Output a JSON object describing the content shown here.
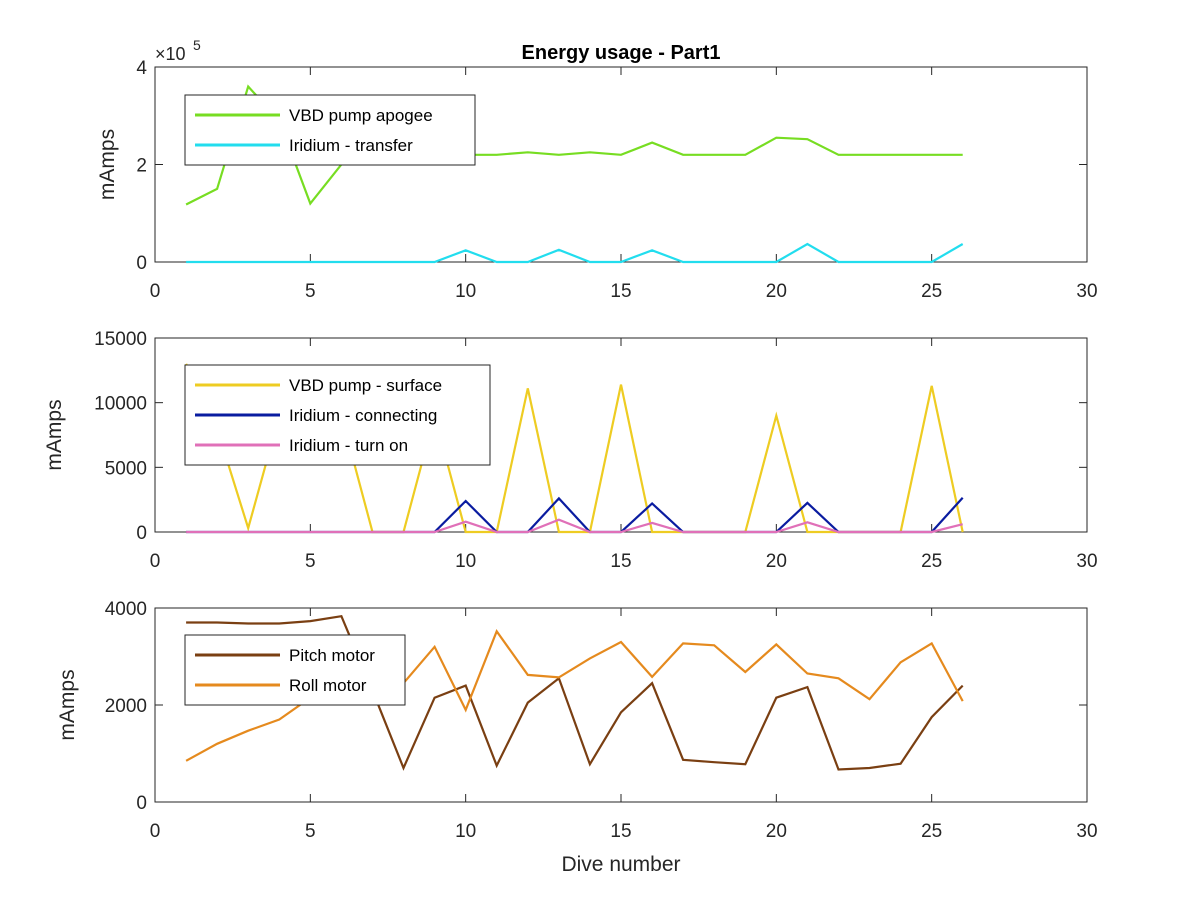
{
  "chart_data": [
    {
      "type": "line",
      "title": "Energy usage - Part1",
      "xlabel": "",
      "ylabel": "mAmps",
      "xlim": [
        0,
        30
      ],
      "ylim": [
        0,
        400000
      ],
      "y_exponent_base": "×10",
      "y_exponent_power": "5",
      "xticks": [
        0,
        5,
        10,
        15,
        20,
        25,
        30
      ],
      "xtick_labels": [
        "0",
        "5",
        "10",
        "15",
        "20",
        "25",
        "30"
      ],
      "yticks": [
        0,
        200000,
        400000
      ],
      "ytick_labels": [
        "0",
        "2",
        "4"
      ],
      "grid": false,
      "legend_position": "top-left",
      "x": [
        1,
        2,
        3,
        4,
        5,
        6,
        7,
        8,
        9,
        10,
        11,
        12,
        13,
        14,
        15,
        16,
        17,
        18,
        19,
        20,
        21,
        22,
        23,
        24,
        25,
        26
      ],
      "series": [
        {
          "name": "VBD pump apogee",
          "color": "#77dd22",
          "values": [
            118000,
            150000,
            360000,
            290000,
            120000,
            200000,
            230000,
            230000,
            225000,
            220000,
            220000,
            225000,
            220000,
            225000,
            220000,
            245000,
            220000,
            220000,
            220000,
            255000,
            252000,
            220000,
            220000,
            220000,
            220000,
            220000
          ]
        },
        {
          "name": "Iridium - transfer",
          "color": "#22ddee",
          "values": [
            0,
            0,
            0,
            0,
            0,
            0,
            0,
            0,
            0,
            24000,
            0,
            0,
            25000,
            0,
            0,
            24000,
            0,
            0,
            0,
            0,
            37000,
            0,
            0,
            0,
            0,
            37000
          ]
        }
      ]
    },
    {
      "type": "line",
      "title": "",
      "xlabel": "",
      "ylabel": "mAmps",
      "xlim": [
        0,
        30
      ],
      "ylim": [
        0,
        15000
      ],
      "xticks": [
        0,
        5,
        10,
        15,
        20,
        25,
        30
      ],
      "xtick_labels": [
        "0",
        "5",
        "10",
        "15",
        "20",
        "25",
        "30"
      ],
      "yticks": [
        0,
        5000,
        10000,
        15000
      ],
      "ytick_labels": [
        "0",
        "5000",
        "10000",
        "15000"
      ],
      "grid": false,
      "legend_position": "top-left",
      "x": [
        1,
        2,
        3,
        4,
        5,
        6,
        7,
        8,
        9,
        10,
        11,
        12,
        13,
        14,
        15,
        16,
        17,
        18,
        19,
        20,
        21,
        22,
        23,
        24,
        25,
        26
      ],
      "series": [
        {
          "name": "VBD pump - surface",
          "color": "#eecc22",
          "values": [
            13000,
            8000,
            300,
            9000,
            10000,
            9000,
            0,
            0,
            9000,
            0,
            0,
            11100,
            0,
            0,
            11400,
            0,
            0,
            0,
            0,
            9000,
            0,
            0,
            0,
            0,
            11300,
            0
          ]
        },
        {
          "name": "Iridium - connecting",
          "color": "#0a1ca0",
          "values": [
            0,
            0,
            0,
            0,
            0,
            0,
            0,
            0,
            0,
            2400,
            0,
            0,
            2600,
            0,
            0,
            2200,
            0,
            0,
            0,
            0,
            2250,
            0,
            0,
            0,
            0,
            2650
          ]
        },
        {
          "name": "Iridium - turn on",
          "color": "#e070b8",
          "values": [
            0,
            0,
            0,
            0,
            0,
            0,
            0,
            0,
            0,
            800,
            0,
            0,
            950,
            0,
            0,
            700,
            0,
            0,
            0,
            0,
            750,
            0,
            0,
            0,
            0,
            600
          ]
        }
      ]
    },
    {
      "type": "line",
      "title": "",
      "xlabel": "Dive number",
      "ylabel": "mAmps",
      "xlim": [
        0,
        30
      ],
      "ylim": [
        0,
        4000
      ],
      "xticks": [
        0,
        5,
        10,
        15,
        20,
        25,
        30
      ],
      "xtick_labels": [
        "0",
        "5",
        "10",
        "15",
        "20",
        "25",
        "30"
      ],
      "yticks": [
        0,
        2000,
        4000
      ],
      "ytick_labels": [
        "0",
        "2000",
        "4000"
      ],
      "grid": false,
      "legend_position": "top-left",
      "x": [
        1,
        2,
        3,
        4,
        5,
        6,
        7,
        8,
        9,
        10,
        11,
        12,
        13,
        14,
        15,
        16,
        17,
        18,
        19,
        20,
        21,
        22,
        23,
        24,
        25,
        26
      ],
      "series": [
        {
          "name": "Pitch motor",
          "color": "#7a3f12",
          "values": [
            3700,
            3700,
            3680,
            3680,
            3730,
            3830,
            2300,
            700,
            2150,
            2400,
            750,
            2050,
            2550,
            780,
            1850,
            2450,
            870,
            820,
            780,
            2150,
            2370,
            670,
            700,
            790,
            1750,
            2400
          ]
        },
        {
          "name": "Roll motor",
          "color": "#e58a1e",
          "values": [
            850,
            1200,
            1470,
            1700,
            2150,
            2350,
            2450,
            2450,
            3200,
            1900,
            3520,
            2620,
            2570,
            2960,
            3300,
            2580,
            3270,
            3230,
            2680,
            3250,
            2650,
            2550,
            2120,
            2880,
            3270,
            2080
          ]
        }
      ]
    }
  ]
}
